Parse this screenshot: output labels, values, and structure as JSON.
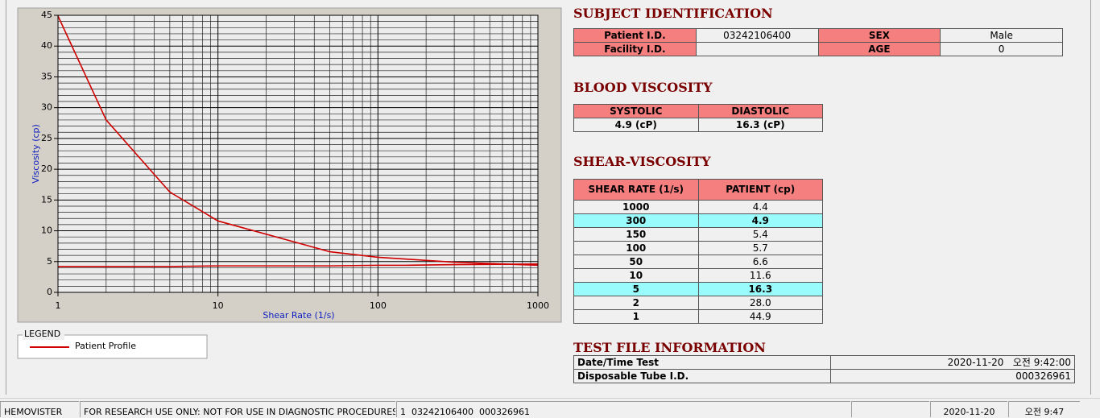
{
  "chart_data": {
    "type": "line",
    "x_label": "Shear Rate (1/s)",
    "y_label": "Viscosity (cp)",
    "x": [
      1,
      2,
      5,
      10,
      50,
      100,
      150,
      300,
      1000
    ],
    "series": [
      {
        "name": "Patient Profile",
        "color": "#d00000",
        "values": [
          44.9,
          28.0,
          16.3,
          11.6,
          6.6,
          5.7,
          5.4,
          4.9,
          4.4
        ]
      },
      {
        "color": "#d00000",
        "values": [
          4.2,
          4.2,
          4.2,
          4.3,
          4.3,
          4.4,
          4.4,
          4.5,
          4.6
        ]
      }
    ],
    "log_x": true,
    "xlim": [
      1,
      1000
    ],
    "ylim": [
      0,
      45
    ],
    "xticks": [
      1,
      10,
      100,
      1000
    ],
    "yticks": [
      0,
      5,
      10,
      15,
      20,
      25,
      30,
      35,
      40,
      45
    ],
    "xminorticks": [
      2,
      3,
      4,
      5,
      6,
      7,
      8,
      9,
      20,
      30,
      40,
      50,
      60,
      70,
      80,
      90,
      200,
      300,
      400,
      500,
      600,
      700,
      800,
      900
    ],
    "yminorticks": [
      1,
      2,
      3,
      4,
      6,
      7,
      8,
      9,
      11,
      12,
      13,
      14,
      16,
      17,
      18,
      19,
      21,
      22,
      23,
      24,
      26,
      27,
      28,
      29,
      31,
      32,
      33,
      34,
      36,
      37,
      38,
      39,
      41,
      42,
      43,
      44
    ],
    "grid": true,
    "legend_title": "LEGEND"
  },
  "subject": {
    "title": "SUBJECT IDENTIFICATION",
    "cells": [
      {
        "label": "Patient I.D.",
        "value": "03242106400"
      },
      {
        "label": "SEX",
        "value": "Male"
      },
      {
        "label": "Facility I.D."
      },
      {
        "label": "AGE",
        "value": "0"
      }
    ]
  },
  "blood": {
    "title": "BLOOD VISCOSITY",
    "headers": [
      "SYSTOLIC",
      "DIASTOLIC"
    ],
    "values": [
      "4.9 (cP)",
      "16.3 (cP)"
    ]
  },
  "shear": {
    "title": "SHEAR-VISCOSITY",
    "headers": [
      "SHEAR RATE (1/s)",
      "PATIENT (cp)"
    ],
    "rows": [
      {
        "rate": "1000",
        "value": "4.4"
      },
      {
        "rate": "300",
        "value": "4.9",
        "highlight": true
      },
      {
        "rate": "150",
        "value": "5.4"
      },
      {
        "rate": "100",
        "value": "5.7"
      },
      {
        "rate": "50",
        "value": "6.6"
      },
      {
        "rate": "10",
        "value": "11.6"
      },
      {
        "rate": "5",
        "value": "16.3",
        "highlight": true
      },
      {
        "rate": "2",
        "value": "28.0"
      },
      {
        "rate": "1",
        "value": "44.9"
      }
    ]
  },
  "testfile": {
    "title": "TEST FILE INFORMATION",
    "rows": [
      [
        "Date/Time Test",
        "2020-11-20   오전 9:42:00"
      ],
      [
        "Disposable Tube I.D.",
        "000326961"
      ]
    ]
  },
  "status": [
    "HEMOVISTER",
    "FOR RESEARCH USE ONLY: NOT FOR USE IN DIAGNOSTIC PROCEDURES",
    "1  03242106400  000326961",
    "2020-11-20",
    "오전 9:47"
  ]
}
